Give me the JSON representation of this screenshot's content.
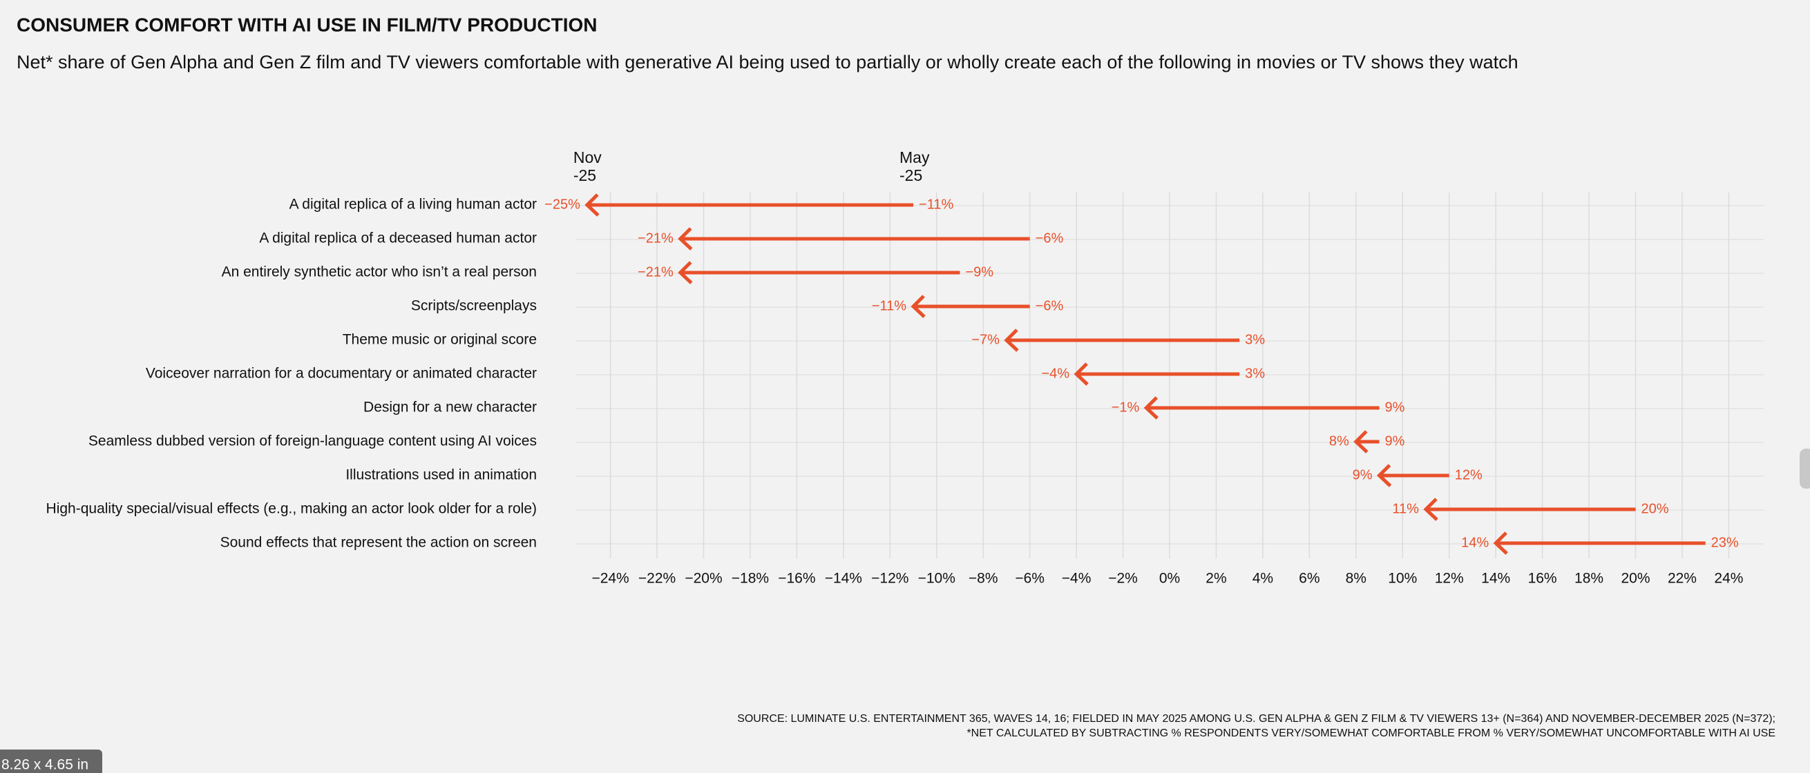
{
  "chart_data": {
    "type": "arrow",
    "title": "CONSUMER COMFORT WITH AI USE IN FILM/TV PRODUCTION",
    "subtitle": "Net* share of Gen Alpha and Gen Z film and TV viewers comfortable with generative AI being used to partially or wholly create each of the following in movies or TV shows they watch",
    "categories": [
      "A digital replica of a living human actor",
      "A digital replica of a deceased human actor",
      "An entirely synthetic actor who isn’t a real person",
      "Scripts/screenplays",
      "Theme music or original score",
      "Voiceover narration for a documentary or animated character",
      "Design for a new character",
      "Seamless dubbed version of foreign-language content using AI voices",
      "Illustrations used in animation",
      "High-quality special/visual effects (e.g., making an actor look older for a role)",
      "Sound effects that represent the action on screen"
    ],
    "series": [
      {
        "name": "May -25",
        "color": "#e8502a",
        "values": [
          -11,
          -6,
          -9,
          -6,
          3,
          3,
          9,
          9,
          12,
          20,
          23
        ],
        "value_labels": [
          "−11%",
          "−6%",
          "−9%",
          "−6%",
          "3%",
          "3%",
          "9%",
          "9%",
          "12%",
          "20%",
          "23%"
        ]
      },
      {
        "name": "Nov -25",
        "color": "#e8502a",
        "values": [
          -25,
          -21,
          -21,
          -11,
          -7,
          -4,
          -1,
          8,
          9,
          11,
          14
        ],
        "value_labels": [
          "−25%",
          "−21%",
          "−21%",
          "−11%",
          "−7%",
          "−4%",
          "−1%",
          "8%",
          "9%",
          "11%",
          "14%"
        ]
      }
    ],
    "xlim": [
      -25.5,
      25.5
    ],
    "xticks": [
      {
        "value": -24,
        "label": "−24%"
      },
      {
        "value": -22,
        "label": "−22%"
      },
      {
        "value": -20,
        "label": "−20%"
      },
      {
        "value": -18,
        "label": "−18%"
      },
      {
        "value": -16,
        "label": "−16%"
      },
      {
        "value": -14,
        "label": "−14%"
      },
      {
        "value": -12,
        "label": "−12%"
      },
      {
        "value": -10,
        "label": "−10%"
      },
      {
        "value": -8,
        "label": "−8%"
      },
      {
        "value": -6,
        "label": "−6%"
      },
      {
        "value": -4,
        "label": "−4%"
      },
      {
        "value": -2,
        "label": "−2%"
      },
      {
        "value": 0,
        "label": "0%"
      },
      {
        "value": 2,
        "label": "2%"
      },
      {
        "value": 4,
        "label": "4%"
      },
      {
        "value": 6,
        "label": "6%"
      },
      {
        "value": 8,
        "label": "8%"
      },
      {
        "value": 10,
        "label": "10%"
      },
      {
        "value": 12,
        "label": "12%"
      },
      {
        "value": 14,
        "label": "14%"
      },
      {
        "value": 16,
        "label": "16%"
      },
      {
        "value": 18,
        "label": "18%"
      },
      {
        "value": 20,
        "label": "20%"
      },
      {
        "value": 22,
        "label": "22%"
      },
      {
        "value": 24,
        "label": "24%"
      }
    ],
    "grid": true,
    "source": "SOURCE: LUMINATE U.S. ENTERTAINMENT 365, WAVES 14, 16; FIELDED IN MAY 2025 AMONG U.S. GEN ALPHA & GEN Z FILM & TV VIEWERS 13+ (N=364) AND NOVEMBER-DECEMBER 2025 (N=372);",
    "note": "*NET CALCULATED BY SUBTRACTING % RESPONDENTS VERY/SOMEWHAT COMFORTABLE FROM % VERY/SOMEWHAT UNCOMFORTABLE WITH AI USE"
  },
  "overlay_badge": "8.26 x 4.65 in"
}
